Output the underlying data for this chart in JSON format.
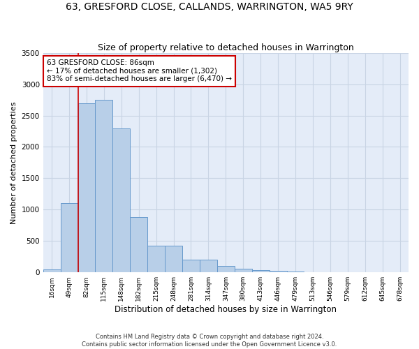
{
  "title": "63, GRESFORD CLOSE, CALLANDS, WARRINGTON, WA5 9RY",
  "subtitle": "Size of property relative to detached houses in Warrington",
  "xlabel": "Distribution of detached houses by size in Warrington",
  "ylabel": "Number of detached properties",
  "bin_labels": [
    "16sqm",
    "49sqm",
    "82sqm",
    "115sqm",
    "148sqm",
    "182sqm",
    "215sqm",
    "248sqm",
    "281sqm",
    "314sqm",
    "347sqm",
    "380sqm",
    "413sqm",
    "446sqm",
    "479sqm",
    "513sqm",
    "546sqm",
    "579sqm",
    "612sqm",
    "645sqm",
    "678sqm"
  ],
  "bar_values": [
    50,
    1100,
    2700,
    2750,
    2300,
    880,
    420,
    420,
    200,
    200,
    100,
    60,
    40,
    20,
    10,
    5,
    3,
    2,
    1,
    1,
    0
  ],
  "bar_color": "#b8cfe8",
  "bar_edge_color": "#6699cc",
  "property_bin_index": 2,
  "annotation_text": "63 GRESFORD CLOSE: 86sqm\n← 17% of detached houses are smaller (1,302)\n83% of semi-detached houses are larger (6,470) →",
  "annotation_box_color": "#ffffff",
  "annotation_box_edge": "#cc0000",
  "vline_color": "#cc0000",
  "ylim": [
    0,
    3500
  ],
  "yticks": [
    0,
    500,
    1000,
    1500,
    2000,
    2500,
    3000,
    3500
  ],
  "grid_color": "#c8d4e4",
  "background_color": "#e4ecf8",
  "footer_line1": "Contains HM Land Registry data © Crown copyright and database right 2024.",
  "footer_line2": "Contains public sector information licensed under the Open Government Licence v3.0.",
  "title_fontsize": 10,
  "subtitle_fontsize": 9,
  "xlabel_fontsize": 8.5,
  "ylabel_fontsize": 8
}
